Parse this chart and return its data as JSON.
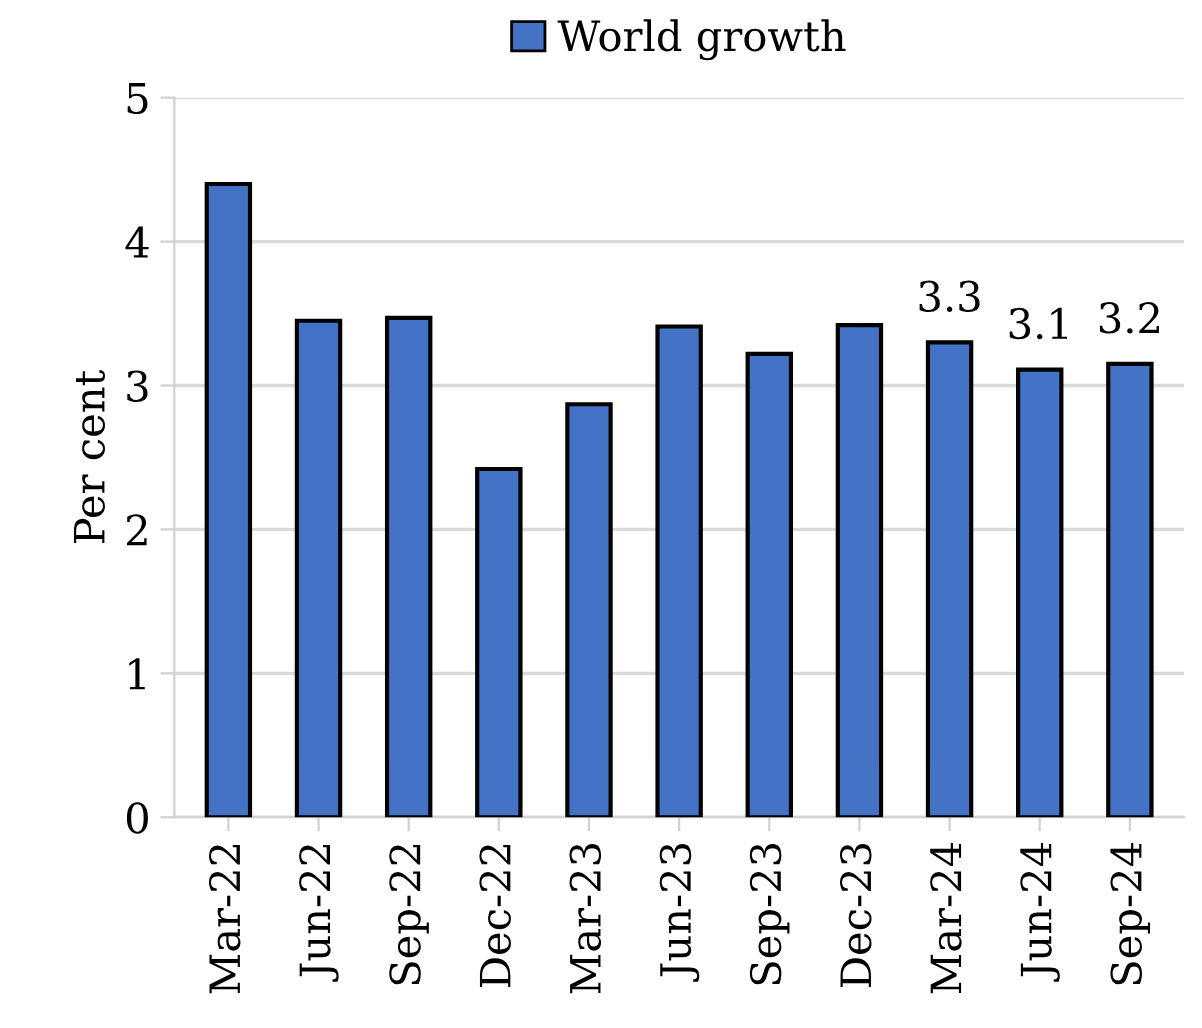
{
  "chart_data": {
    "type": "bar",
    "ylabel": "Per cent",
    "categories": [
      "Mar-22",
      "Jun-22",
      "Sep-22",
      "Dec-22",
      "Mar-23",
      "Jun-23",
      "Sep-23",
      "Dec-23",
      "Mar-24",
      "Jun-24",
      "Sep-24"
    ],
    "series": [
      {
        "name": "World growth",
        "color": "#4472c4",
        "values": [
          4.4,
          3.45,
          3.47,
          2.42,
          2.87,
          3.41,
          3.22,
          3.42,
          3.3,
          3.11,
          3.15
        ],
        "value_labels": [
          null,
          null,
          null,
          null,
          null,
          null,
          null,
          null,
          "3.3",
          "3.1",
          "3.2"
        ]
      }
    ],
    "ylim": [
      0,
      5
    ],
    "yticks": [
      0,
      1,
      2,
      3,
      4,
      5
    ],
    "grid": "y",
    "legend": "top"
  }
}
